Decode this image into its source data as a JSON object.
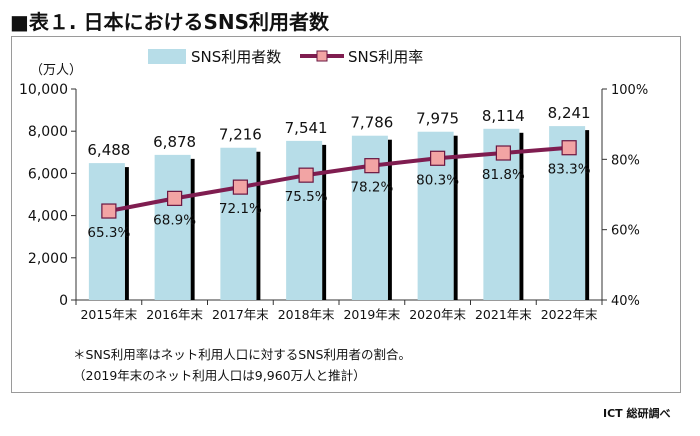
{
  "title": "■表１. 日本におけるSNS利用者数",
  "source": "ICT 総研調べ",
  "notes": [
    "＊SNS利用率はネット利用人口に対するSNS利用者の割合。",
    "（2019年末のネット利用人口は9,960万人と推計）"
  ],
  "colors": {
    "bar": "#b7dde8",
    "bar_shadow": "#000000",
    "line": "#7f1d50",
    "marker_fill": "#f2a4a4",
    "marker_stroke": "#6a1640"
  },
  "chart_data": {
    "type": "bar",
    "categories": [
      "2015年末",
      "2016年末",
      "2017年末",
      "2018年末",
      "2019年末",
      "2020年末",
      "2021年末",
      "2022年末"
    ],
    "series": [
      {
        "name": "SNS利用者数",
        "type": "bar",
        "axis": "left",
        "values": [
          6488,
          6878,
          7216,
          7541,
          7786,
          7975,
          8114,
          8241
        ],
        "labels": [
          "6,488",
          "6,878",
          "7,216",
          "7,541",
          "7,786",
          "7,975",
          "8,114",
          "8,241"
        ]
      },
      {
        "name": "SNS利用率",
        "type": "line",
        "axis": "right",
        "values": [
          65.3,
          68.9,
          72.1,
          75.5,
          78.2,
          80.3,
          81.8,
          83.3
        ],
        "labels": [
          "65.3%",
          "68.9%",
          "72.1%",
          "75.5%",
          "78.2%",
          "80.3%",
          "81.8%",
          "83.3%"
        ]
      }
    ],
    "ylabel": "（万人）",
    "ylim": [
      0,
      10000
    ],
    "yticks": [
      0,
      2000,
      4000,
      6000,
      8000,
      10000
    ],
    "ytick_labels": [
      "0",
      "2,000",
      "4,000",
      "6,000",
      "8,000",
      "10,000"
    ],
    "y2lim": [
      40,
      100
    ],
    "y2ticks": [
      40,
      60,
      80,
      100
    ],
    "y2tick_labels": [
      "40%",
      "60%",
      "80%",
      "100%"
    ],
    "legend": "top",
    "grid": false
  }
}
